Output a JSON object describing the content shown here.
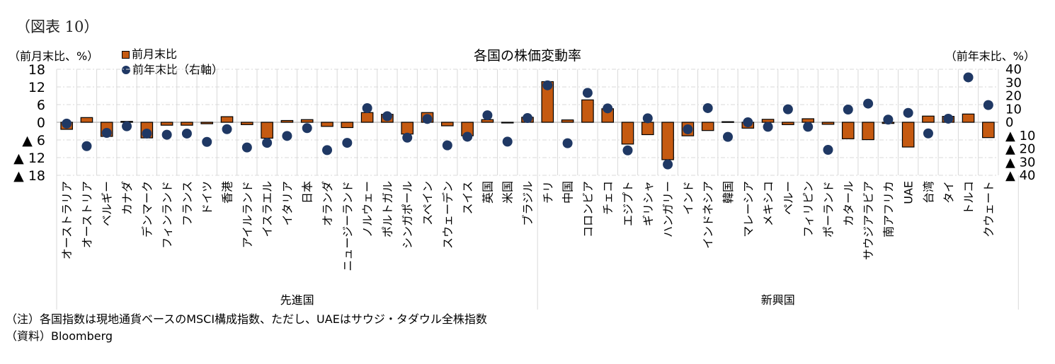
{
  "figure_label": "（図表 10）",
  "notes": {
    "note": "（注）各国指数は現地通貨ベースのMSCI構成指数、ただし、UAEはサウジ・タダウル全株指数",
    "source": "（資料）Bloomberg"
  },
  "chart_data": {
    "type": "bar",
    "title": "各国の株価変動率",
    "left_axis_label": "（前月末比、%）",
    "right_axis_label": "（前年末比、%）",
    "left_ylim": [
      -18,
      18
    ],
    "right_ylim": [
      -40,
      40
    ],
    "left_ticks": [
      18,
      12,
      6,
      0,
      -6,
      -12,
      -18
    ],
    "left_tick_labels": [
      "18",
      "12",
      "6",
      "0",
      "▲ 6",
      "▲ 12",
      "▲ 18"
    ],
    "right_ticks": [
      40,
      30,
      20,
      10,
      0,
      -10,
      -20,
      -30,
      -40
    ],
    "right_tick_labels": [
      "40",
      "30",
      "20",
      "10",
      "0",
      "▲ 10",
      "▲ 20",
      "▲ 30",
      "▲ 40"
    ],
    "grid": true,
    "legend": [
      {
        "name": "前月末比",
        "marker": "bar",
        "color": "#C55A11"
      },
      {
        "name": "前年末比（右軸）",
        "marker": "dot",
        "color": "#1F3864"
      }
    ],
    "legend_position": "top-left",
    "groups": [
      {
        "name": "先進国",
        "start": 0,
        "end": 23
      },
      {
        "name": "新興国",
        "start": 24,
        "end": 47
      }
    ],
    "categories": [
      "オーストラリア",
      "オーストリア",
      "ベルギー",
      "カナダ",
      "デンマーク",
      "フィンランド",
      "フランス",
      "ドイツ",
      "香港",
      "アイルランド",
      "イスラエル",
      "イタリア",
      "日本",
      "オランダ",
      "ニュージーランド",
      "ノルウェー",
      "ポルトガル",
      "シンガポール",
      "スペイン",
      "スウェーデン",
      "スイス",
      "英国",
      "米国",
      "ブラジル",
      "チリ",
      "中国",
      "コロンビア",
      "チェコ",
      "エジプト",
      "ギリシャ",
      "ハンガリー",
      "インド",
      "インドネシア",
      "韓国",
      "マレーシア",
      "メキシコ",
      "ペルー",
      "フィリピン",
      "ポーランド",
      "カタール",
      "サウジアラビア",
      "南アフリカ",
      "UAE",
      "台湾",
      "タイ",
      "トルコ",
      "クウェート"
    ],
    "series": [
      {
        "name": "前月末比",
        "axis": "left",
        "values": [
          -2.4,
          1.6,
          -4.8,
          0.3,
          -5.3,
          -1.0,
          -1.0,
          -0.5,
          1.9,
          -0.8,
          -5.4,
          0.6,
          0.9,
          -1.4,
          -1.8,
          3.3,
          2.7,
          -4.0,
          3.3,
          -1.2,
          -4.6,
          0.9,
          -0.2,
          1.7,
          13.8,
          0.8,
          7.6,
          4.6,
          -7.4,
          -4.2,
          -12.7,
          -4.6,
          -2.8,
          0.2,
          -2.0,
          1.0,
          -0.8,
          1.2,
          -0.7,
          -5.6,
          -5.9,
          -0.4,
          -8.4,
          2.1,
          2.0,
          2.8,
          -5.2
        ]
      },
      {
        "name": "前年末比（右軸）",
        "axis": "right",
        "values": [
          -1,
          -18,
          -8,
          -3,
          -8.5,
          -9.4,
          -8.5,
          -14.8,
          -5.2,
          -19,
          -15.5,
          -10.3,
          -4.4,
          -21,
          -15.5,
          10.7,
          4.6,
          -11.6,
          2.5,
          -17.4,
          -10.9,
          5.3,
          -14.6,
          3.2,
          27.9,
          -15.8,
          22.2,
          10.5,
          -21.2,
          3,
          -31.8,
          -5.3,
          10.7,
          -11,
          0,
          -3.4,
          9.8,
          -3.4,
          -20.8,
          9.6,
          14.1,
          2,
          7.1,
          -8.4,
          2.7,
          33.9,
          13
        ]
      }
    ]
  }
}
